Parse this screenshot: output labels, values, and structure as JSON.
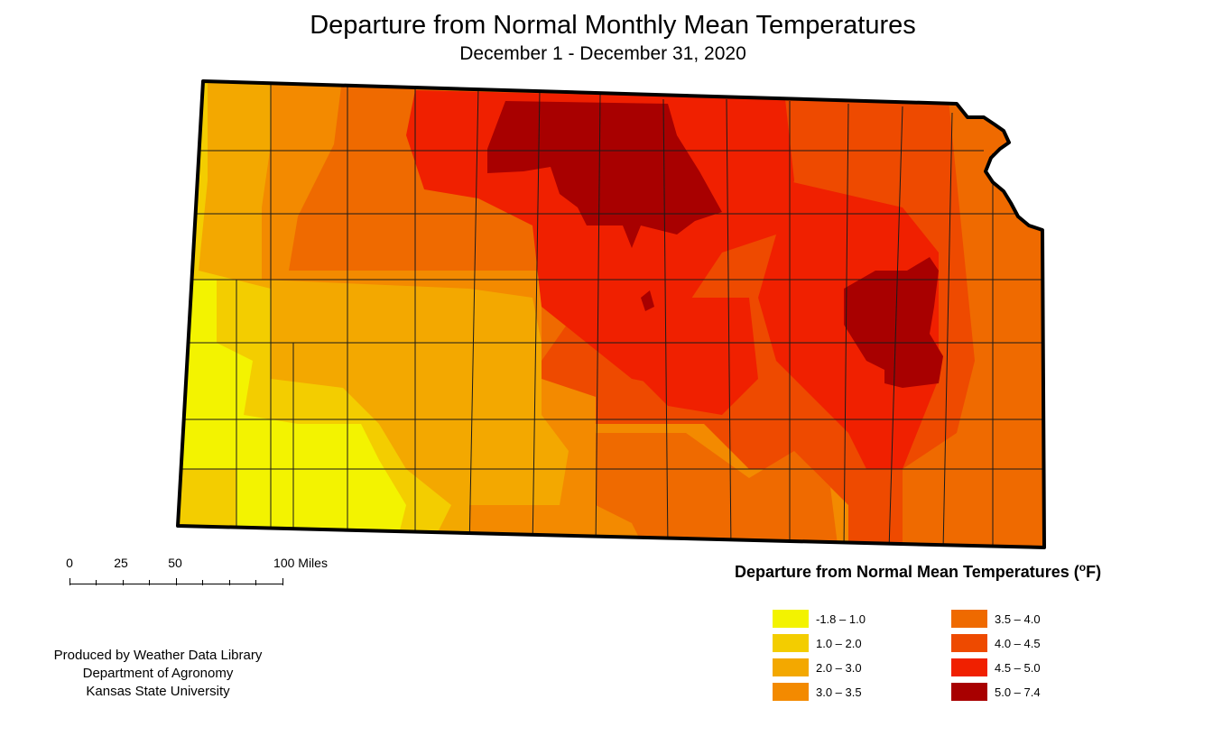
{
  "title": "Departure from Normal Monthly Mean Temperatures",
  "subtitle": "December 1 - December 31, 2020",
  "scale_bar": {
    "labels": [
      "0",
      "25",
      "50",
      "100 Miles"
    ]
  },
  "credits": [
    "Produced by Weather Data Library",
    "Department of Agronomy",
    "Kansas State University"
  ],
  "legend": {
    "title": "Departure from Normal Mean Temperatures (",
    "degree": "o",
    "unit_close": "F)",
    "classes": [
      {
        "label": "-1.8 – 1.0",
        "color": "#f3f300"
      },
      {
        "label": "1.0 – 2.0",
        "color": "#f3cd00"
      },
      {
        "label": "2.0 – 3.0",
        "color": "#f3a800"
      },
      {
        "label": "3.0 – 3.5",
        "color": "#f38a00"
      },
      {
        "label": "3.5 – 4.0",
        "color": "#ef6a00"
      },
      {
        "label": "4.0 – 4.5",
        "color": "#ee4a00"
      },
      {
        "label": "4.5 – 5.0",
        "color": "#f02000"
      },
      {
        "label": "5.0 – 7.4",
        "color": "#a80000"
      }
    ]
  }
}
